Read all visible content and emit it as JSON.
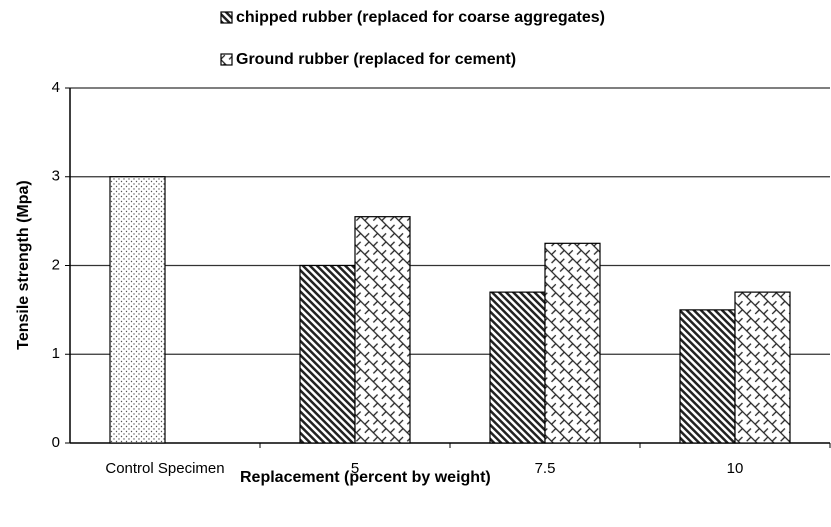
{
  "chart_data": {
    "type": "bar",
    "x_label": "Replacement (percent by weight)",
    "y_label": "Tensile strength (Mpa)",
    "categories": [
      "Control Specimen",
      "5",
      "7.5",
      "10"
    ],
    "series": [
      {
        "pattern": "dots",
        "color": "#000000",
        "values": [
          3.0,
          null,
          null,
          null
        ]
      },
      {
        "name": "chipped rubber (replaced for coarse aggregates)",
        "pattern": "diagonal",
        "color": "#000000",
        "values": [
          null,
          2.0,
          1.7,
          1.5
        ]
      },
      {
        "name": "Ground rubber (replaced for cement)",
        "pattern": "crosshatch",
        "color": "#000000",
        "values": [
          null,
          2.55,
          2.25,
          1.7
        ]
      }
    ],
    "ylim": [
      0,
      4
    ],
    "yticks": [
      0,
      1,
      2,
      3,
      4
    ],
    "grid": true,
    "legend": "top"
  }
}
